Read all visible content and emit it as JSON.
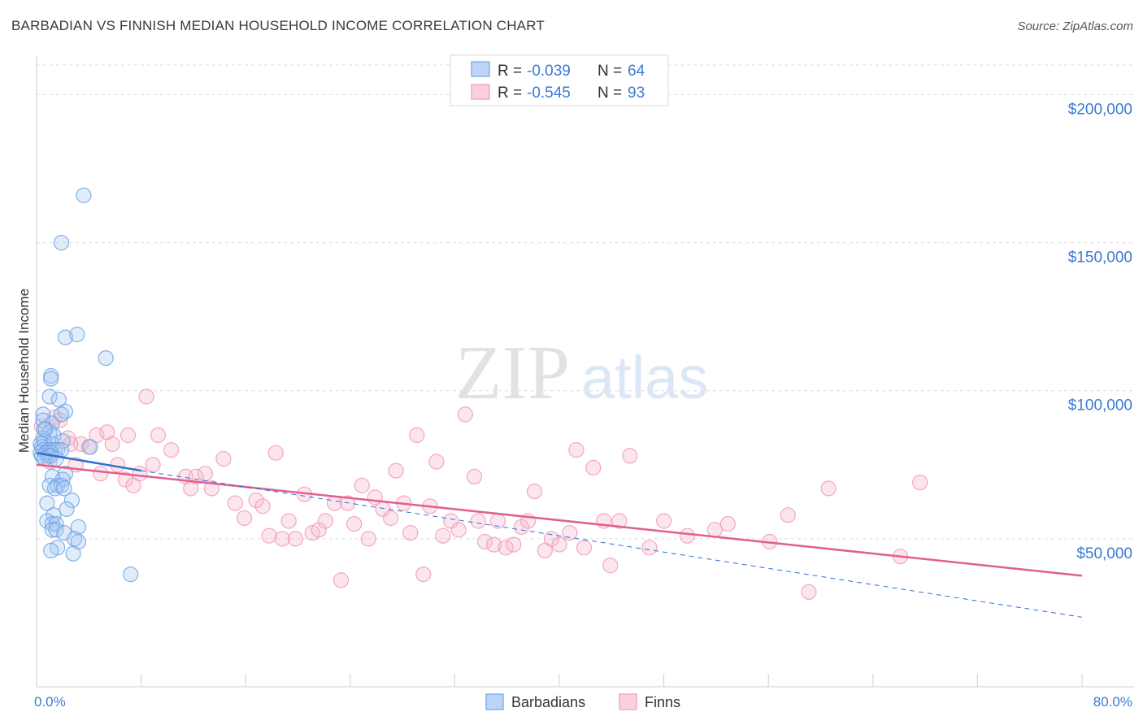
{
  "header": {
    "title": "BARBADIAN VS FINNISH MEDIAN HOUSEHOLD INCOME CORRELATION CHART",
    "source": "Source: ZipAtlas.com"
  },
  "watermark": {
    "zip": "ZIP",
    "atlas": "atlas"
  },
  "colors": {
    "blue": "#6fa3e8",
    "blue_line": "#2f6fd0",
    "pink": "#f19ab6",
    "pink_line": "#e0608e",
    "grid": "#d9d9d9",
    "label": "#3d7ad6"
  },
  "legend_top": {
    "rows": [
      {
        "r_label": "R = ",
        "r_value": "-0.039",
        "n_label": "N = ",
        "n_value": "64",
        "color": "#6fa3e8"
      },
      {
        "r_label": "R = ",
        "r_value": "-0.545",
        "n_label": "N = ",
        "n_value": "93",
        "color": "#f19ab6"
      }
    ]
  },
  "legend_bottom": [
    {
      "label": "Barbadians",
      "color": "#6fa3e8"
    },
    {
      "label": "Finns",
      "color": "#f19ab6"
    }
  ],
  "chart_data": {
    "type": "scatter",
    "xlabel": "",
    "ylabel": "Median Household Income",
    "xlim": [
      0,
      80
    ],
    "ylim": [
      0,
      210000
    ],
    "x_tick_labels": [
      "0.0%",
      "80.0%"
    ],
    "y_ticks": [
      50000,
      100000,
      150000,
      200000
    ],
    "y_tick_labels": [
      "$50,000",
      "$100,000",
      "$150,000",
      "$200,000"
    ],
    "grid": true,
    "legend_position": "top-center",
    "series": [
      {
        "name": "Barbadians",
        "color": "#6fa3e8",
        "trend": {
          "x": [
            0,
            8
          ],
          "y": [
            79000,
            73000
          ]
        },
        "trend_dashed": {
          "x": [
            8,
            80
          ],
          "y": [
            73000,
            23500
          ]
        },
        "points": [
          [
            3.6,
            166000
          ],
          [
            1.9,
            150000
          ],
          [
            2.2,
            118000
          ],
          [
            3.1,
            119000
          ],
          [
            5.3,
            111000
          ],
          [
            1.1,
            105000
          ],
          [
            1.1,
            104000
          ],
          [
            1.0,
            98000
          ],
          [
            1.7,
            97000
          ],
          [
            2.2,
            93000
          ],
          [
            0.5,
            92000
          ],
          [
            0.5,
            90000
          ],
          [
            1.2,
            89000
          ],
          [
            0.7,
            87000
          ],
          [
            1.0,
            86000
          ],
          [
            1.3,
            85000
          ],
          [
            0.5,
            84000
          ],
          [
            0.6,
            83000
          ],
          [
            1.2,
            82000
          ],
          [
            2.0,
            83000
          ],
          [
            0.3,
            82000
          ],
          [
            0.4,
            81000
          ],
          [
            4.1,
            81000
          ],
          [
            0.5,
            80000
          ],
          [
            1.0,
            80000
          ],
          [
            1.4,
            80000
          ],
          [
            1.6,
            80000
          ],
          [
            1.9,
            80000
          ],
          [
            0.3,
            79000
          ],
          [
            0.7,
            79000
          ],
          [
            0.8,
            79000
          ],
          [
            1.1,
            79000
          ],
          [
            0.4,
            78000
          ],
          [
            0.9,
            78000
          ],
          [
            1.1,
            78000
          ],
          [
            0.6,
            77000
          ],
          [
            1.5,
            77000
          ],
          [
            2.2,
            72000
          ],
          [
            1.2,
            71000
          ],
          [
            2.0,
            70000
          ],
          [
            1.0,
            68000
          ],
          [
            1.6,
            68000
          ],
          [
            1.9,
            68000
          ],
          [
            1.4,
            67000
          ],
          [
            2.1,
            67000
          ],
          [
            2.7,
            63000
          ],
          [
            0.8,
            62000
          ],
          [
            2.3,
            60000
          ],
          [
            1.3,
            58000
          ],
          [
            0.8,
            56000
          ],
          [
            1.2,
            55000
          ],
          [
            1.5,
            55000
          ],
          [
            3.2,
            54000
          ],
          [
            1.2,
            53000
          ],
          [
            1.5,
            53000
          ],
          [
            2.1,
            52000
          ],
          [
            2.9,
            50000
          ],
          [
            3.2,
            49000
          ],
          [
            1.6,
            47000
          ],
          [
            1.1,
            46000
          ],
          [
            2.8,
            45000
          ],
          [
            7.2,
            38000
          ],
          [
            0.6,
            87000
          ],
          [
            1.9,
            92000
          ]
        ]
      },
      {
        "name": "Finns",
        "color": "#f19ab6",
        "trend": {
          "x": [
            0,
            80
          ],
          "y": [
            75000,
            37500
          ]
        },
        "points": [
          [
            1.4,
            91000
          ],
          [
            1.8,
            90000
          ],
          [
            2.4,
            84000
          ],
          [
            3.4,
            82000
          ],
          [
            4.6,
            85000
          ],
          [
            5.4,
            86000
          ],
          [
            7.0,
            85000
          ],
          [
            8.4,
            98000
          ],
          [
            9.3,
            85000
          ],
          [
            3.0,
            75000
          ],
          [
            4.9,
            72000
          ],
          [
            5.8,
            82000
          ],
          [
            6.8,
            70000
          ],
          [
            7.4,
            68000
          ],
          [
            7.9,
            72000
          ],
          [
            8.9,
            75000
          ],
          [
            10.3,
            80000
          ],
          [
            11.4,
            71000
          ],
          [
            11.8,
            67000
          ],
          [
            12.2,
            71000
          ],
          [
            12.9,
            72000
          ],
          [
            13.4,
            67000
          ],
          [
            14.3,
            77000
          ],
          [
            15.2,
            62000
          ],
          [
            15.9,
            57000
          ],
          [
            16.8,
            63000
          ],
          [
            17.3,
            61000
          ],
          [
            17.8,
            51000
          ],
          [
            18.3,
            79000
          ],
          [
            18.8,
            50000
          ],
          [
            19.3,
            56000
          ],
          [
            19.8,
            50000
          ],
          [
            20.5,
            65000
          ],
          [
            21.1,
            52000
          ],
          [
            21.6,
            53000
          ],
          [
            22.1,
            56000
          ],
          [
            22.8,
            62000
          ],
          [
            23.3,
            36000
          ],
          [
            23.8,
            62000
          ],
          [
            24.3,
            55000
          ],
          [
            24.9,
            68000
          ],
          [
            25.4,
            50000
          ],
          [
            25.9,
            64000
          ],
          [
            26.5,
            60000
          ],
          [
            27.1,
            57000
          ],
          [
            27.5,
            73000
          ],
          [
            28.1,
            62000
          ],
          [
            28.6,
            52000
          ],
          [
            29.1,
            85000
          ],
          [
            29.6,
            38000
          ],
          [
            30.1,
            61000
          ],
          [
            30.6,
            76000
          ],
          [
            31.1,
            51000
          ],
          [
            31.7,
            56000
          ],
          [
            32.3,
            53000
          ],
          [
            32.8,
            92000
          ],
          [
            33.5,
            71000
          ],
          [
            33.8,
            56000
          ],
          [
            34.3,
            49000
          ],
          [
            35.0,
            48000
          ],
          [
            35.3,
            56000
          ],
          [
            35.9,
            47000
          ],
          [
            36.5,
            48000
          ],
          [
            37.1,
            54000
          ],
          [
            37.6,
            56000
          ],
          [
            38.1,
            66000
          ],
          [
            38.9,
            46000
          ],
          [
            39.4,
            50000
          ],
          [
            40.0,
            48000
          ],
          [
            40.8,
            52000
          ],
          [
            41.3,
            80000
          ],
          [
            41.9,
            47000
          ],
          [
            42.6,
            74000
          ],
          [
            43.4,
            56000
          ],
          [
            43.9,
            41000
          ],
          [
            44.6,
            56000
          ],
          [
            45.4,
            78000
          ],
          [
            46.9,
            47000
          ],
          [
            48.0,
            56000
          ],
          [
            49.8,
            51000
          ],
          [
            51.9,
            53000
          ],
          [
            52.9,
            55000
          ],
          [
            56.1,
            49000
          ],
          [
            57.5,
            58000
          ],
          [
            59.1,
            32000
          ],
          [
            60.6,
            67000
          ],
          [
            66.1,
            44000
          ],
          [
            67.6,
            69000
          ],
          [
            0.4,
            88000
          ],
          [
            1.0,
            76000
          ],
          [
            2.6,
            82000
          ],
          [
            4.0,
            81000
          ],
          [
            6.2,
            75000
          ]
        ]
      }
    ]
  }
}
